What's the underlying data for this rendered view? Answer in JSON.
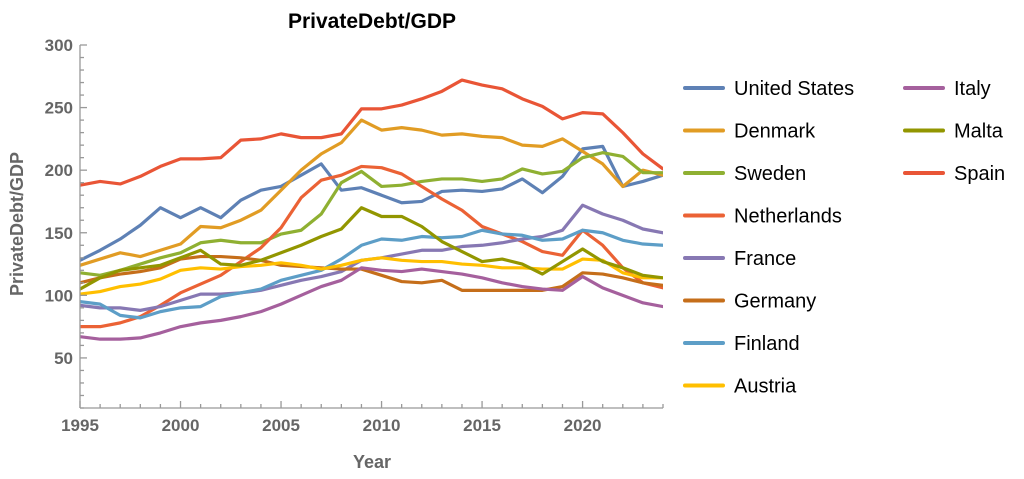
{
  "chart_data": {
    "type": "line",
    "title": "PrivateDebt/GDP",
    "xlabel": "Year",
    "ylabel": "PrivateDebt/GDP",
    "xlim": [
      1995,
      2024
    ],
    "ylim": [
      10,
      300
    ],
    "xticks": [
      1995,
      2000,
      2005,
      2010,
      2015,
      2020
    ],
    "yticks": [
      50,
      100,
      150,
      200,
      250,
      300
    ],
    "grid": false,
    "legend_position": "right",
    "x": [
      1995,
      1996,
      1997,
      1998,
      1999,
      2000,
      2001,
      2002,
      2003,
      2004,
      2005,
      2006,
      2007,
      2008,
      2009,
      2010,
      2011,
      2012,
      2013,
      2014,
      2015,
      2016,
      2017,
      2018,
      2019,
      2020,
      2021,
      2022,
      2023,
      2024
    ],
    "series": [
      {
        "name": "United States",
        "color": "#5E81B5",
        "values": [
          128,
          136,
          145,
          156,
          170,
          162,
          170,
          162,
          176,
          184,
          187,
          196,
          205,
          184,
          186,
          180,
          174,
          175,
          183,
          184,
          183,
          185,
          193,
          182,
          195,
          217,
          219,
          187,
          191,
          196
        ]
      },
      {
        "name": "Denmark",
        "color": "#E19C24",
        "values": [
          124,
          129,
          134,
          131,
          136,
          141,
          155,
          154,
          160,
          168,
          184,
          200,
          213,
          222,
          240,
          232,
          234,
          232,
          228,
          229,
          227,
          226,
          220,
          219,
          225,
          215,
          205,
          187,
          200,
          196
        ]
      },
      {
        "name": "Sweden",
        "color": "#8FB032",
        "values": [
          118,
          116,
          120,
          125,
          130,
          134,
          142,
          144,
          142,
          142,
          149,
          152,
          165,
          190,
          199,
          187,
          188,
          191,
          193,
          193,
          191,
          193,
          201,
          197,
          199,
          210,
          214,
          211,
          198,
          198
        ]
      },
      {
        "name": "Netherlands",
        "color": "#EB6235",
        "values": [
          75,
          75,
          78,
          83,
          92,
          102,
          109,
          116,
          127,
          138,
          154,
          178,
          192,
          196,
          203,
          202,
          197,
          187,
          177,
          168,
          155,
          149,
          143,
          135,
          132,
          152,
          140,
          122,
          110,
          106
        ]
      },
      {
        "name": "France",
        "color": "#8778B3",
        "values": [
          92,
          90,
          90,
          88,
          91,
          96,
          101,
          101,
          102,
          104,
          108,
          112,
          115,
          119,
          128,
          130,
          133,
          136,
          136,
          139,
          140,
          142,
          145,
          147,
          152,
          172,
          165,
          160,
          153,
          150
        ]
      },
      {
        "name": "Germany",
        "color": "#C56E1A",
        "values": [
          110,
          114,
          117,
          119,
          122,
          129,
          131,
          131,
          130,
          128,
          124,
          123,
          122,
          121,
          121,
          116,
          111,
          110,
          112,
          104,
          104,
          104,
          104,
          104,
          107,
          118,
          117,
          114,
          110,
          108
        ]
      },
      {
        "name": "Finland",
        "color": "#5D9EC7",
        "values": [
          95,
          93,
          84,
          82,
          87,
          90,
          91,
          99,
          102,
          105,
          112,
          116,
          120,
          129,
          140,
          145,
          144,
          147,
          146,
          147,
          152,
          149,
          148,
          144,
          145,
          152,
          150,
          144,
          141,
          140
        ]
      },
      {
        "name": "Austria",
        "color": "#FFBF00",
        "values": [
          101,
          103,
          107,
          109,
          113,
          120,
          122,
          121,
          123,
          124,
          126,
          124,
          121,
          124,
          128,
          130,
          128,
          127,
          127,
          125,
          124,
          122,
          122,
          121,
          121,
          129,
          128,
          118,
          114,
          114
        ]
      },
      {
        "name": "Italy",
        "color": "#A5609D",
        "values": [
          67,
          65,
          65,
          66,
          70,
          75,
          78,
          80,
          83,
          87,
          93,
          100,
          107,
          112,
          122,
          120,
          119,
          121,
          119,
          117,
          114,
          110,
          107,
          105,
          104,
          115,
          106,
          100,
          94,
          91
        ]
      },
      {
        "name": "Malta",
        "color": "#929600",
        "values": [
          105,
          114,
          120,
          122,
          124,
          130,
          136,
          125,
          124,
          128,
          134,
          140,
          147,
          153,
          170,
          163,
          163,
          155,
          143,
          135,
          127,
          129,
          125,
          117,
          127,
          137,
          127,
          122,
          116,
          114
        ]
      },
      {
        "name": "Spain",
        "color": "#E95536",
        "values": [
          188,
          191,
          189,
          195,
          203,
          209,
          209,
          210,
          224,
          225,
          229,
          226,
          226,
          229,
          249,
          249,
          252,
          257,
          263,
          272,
          268,
          265,
          257,
          251,
          241,
          246,
          245,
          230,
          213,
          201
        ]
      }
    ]
  }
}
